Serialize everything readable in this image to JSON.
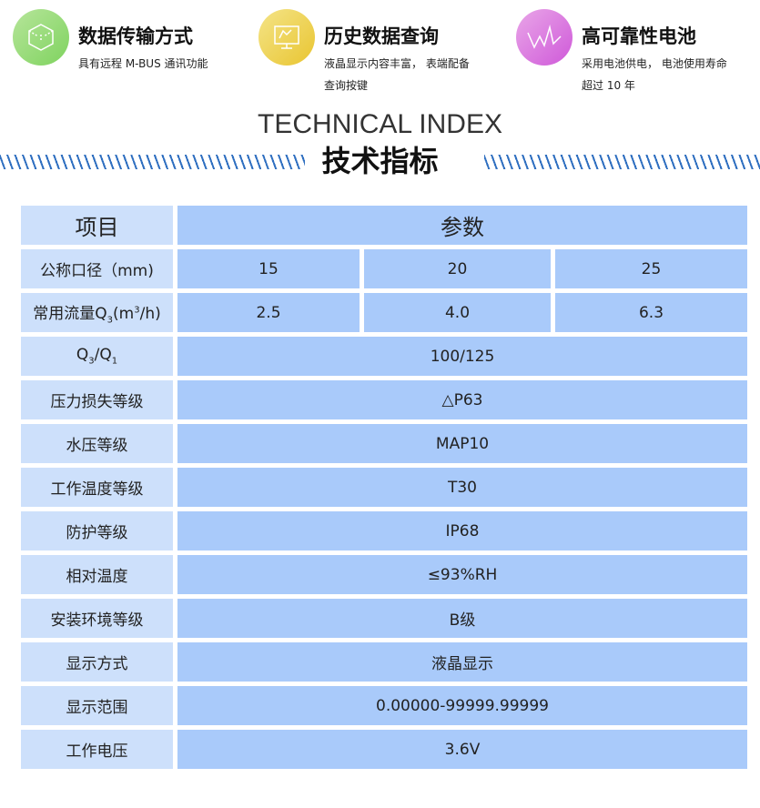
{
  "features": [
    {
      "title": "数据传输方式",
      "desc": [
        "具有远程 M-BUS 通讯功能"
      ],
      "icon": "cube-icon",
      "color": "#8fd873"
    },
    {
      "title": "历史数据查询",
      "desc": [
        "液晶显示内容丰富， 表端配备",
        "查询按键"
      ],
      "icon": "monitor-icon",
      "color": "#ecd148"
    },
    {
      "title": "高可靠性电池",
      "desc": [
        "采用电池供电， 电池使用寿命",
        "超过 10 年"
      ],
      "icon": "waveform-icon",
      "color": "#d56fe0"
    }
  ],
  "section": {
    "title_en": "TECHNICAL INDEX",
    "title_zh": "技术指标"
  },
  "table": {
    "header": [
      "项目",
      "参数"
    ],
    "diameter": {
      "label": "公称口径（mm)",
      "values": [
        "15",
        "20",
        "25"
      ]
    },
    "flow": {
      "label_pre": "常用流量Q",
      "label_sub": "3",
      "label_mid": "(m",
      "label_sup": "3",
      "label_post": "/h)",
      "values": [
        "2.5",
        "4.0",
        "6.3"
      ]
    },
    "ratio": {
      "q": "Q",
      "s3": "3",
      "slash": "/Q",
      "s1": "1",
      "value": "100/125"
    },
    "rows": [
      {
        "label": "压力损失等级",
        "value": "△P63"
      },
      {
        "label": "水压等级",
        "value": "MAP10"
      },
      {
        "label": "工作温度等级",
        "value": "T30"
      },
      {
        "label": "防护等级",
        "value": "IP68"
      },
      {
        "label": "相对温度",
        "value": "≤93%RH"
      },
      {
        "label": "安装环境等级",
        "value": "B级"
      },
      {
        "label": "显示方式",
        "value": "液晶显示"
      },
      {
        "label": "显示范围",
        "value": "0.00000-99999.99999"
      },
      {
        "label": "工作电压",
        "value": "3.6V"
      }
    ]
  }
}
